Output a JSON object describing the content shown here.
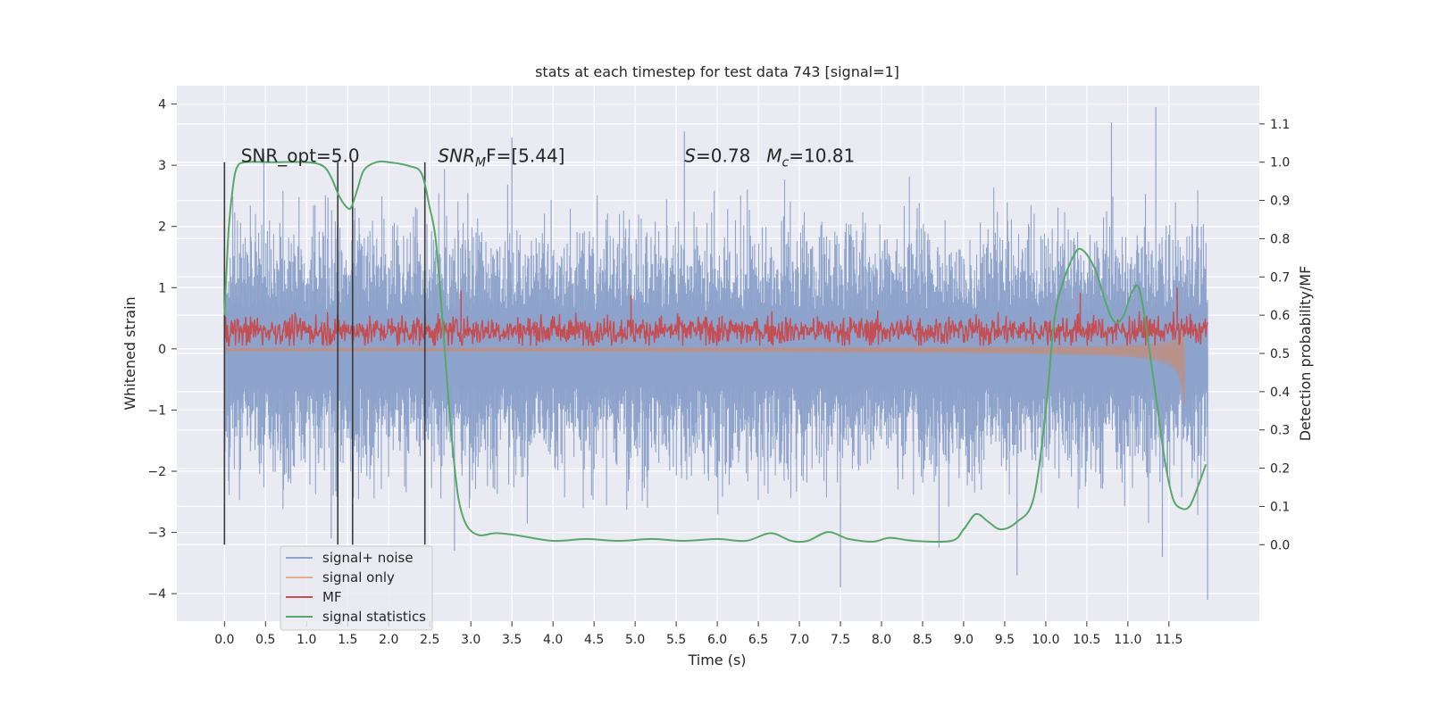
{
  "chart_data": {
    "type": "line",
    "title": "stats at each timestep for test data 743 [signal=1]",
    "xlabel": "Time (s)",
    "ylabel_left": "Whitened strain",
    "ylabel_right": "Detection probability/MF",
    "x_range": [
      -0.58,
      12.6
    ],
    "y_left_range": [
      -4.45,
      4.3
    ],
    "y_right_range": [
      -0.2,
      1.2
    ],
    "x_ticks": [
      0.0,
      0.5,
      1.0,
      1.5,
      2.0,
      2.5,
      3.0,
      3.5,
      4.0,
      4.5,
      5.0,
      5.5,
      6.0,
      6.5,
      7.0,
      7.5,
      8.0,
      8.5,
      9.0,
      9.5,
      10.0,
      10.5,
      11.0,
      11.5
    ],
    "x_tick_labels": [
      "0.0",
      "0.5",
      "1.0",
      "1.5",
      "2.0",
      "2.5",
      "3.0",
      "3.5",
      "4.0",
      "4.5",
      "5.0",
      "5.5",
      "6.0",
      "6.5",
      "7.0",
      "7.5",
      "8.0",
      "8.5",
      "9.0",
      "9.5",
      "10.0",
      "10.5",
      "11.0",
      "11.5"
    ],
    "y_left_ticks": [
      4,
      3,
      2,
      1,
      0,
      -1,
      -2,
      -3,
      -4
    ],
    "y_left_tick_labels": [
      "4",
      "3",
      "2",
      "1",
      "0",
      "−1",
      "−2",
      "−3",
      "−4"
    ],
    "y_right_ticks": [
      1.1,
      1.0,
      0.9,
      0.8,
      0.7,
      0.6,
      0.5,
      0.4,
      0.3,
      0.2,
      0.1,
      0.0
    ],
    "y_right_tick_labels": [
      "1.1",
      "1.0",
      "0.9",
      "0.8",
      "0.7",
      "0.6",
      "0.5",
      "0.4",
      "0.3",
      "0.2",
      "0.1",
      "0.0"
    ],
    "grid": true,
    "legend_placement": "lower-left",
    "colors": {
      "signal_noise": "#8ea3cb",
      "signal_only": "#dd8452",
      "mf": "#c44e52",
      "statistics": "#55a868",
      "vlines": "#3a3a3a",
      "background": "#eaeaf2",
      "grid": "#ffffff"
    },
    "series": [
      {
        "key": "signal_noise",
        "name": "signal+ noise",
        "axis": "left",
        "description_envelope": true,
        "x_start": 0.0,
        "x_end": 11.97,
        "typical_upper": 1.8,
        "typical_lower": -1.8,
        "peak_upper": 3.95,
        "peak_lower": -4.1
      },
      {
        "key": "signal_only",
        "name": "signal only",
        "axis": "left",
        "x_start": 0.0,
        "x_end": 11.69,
        "final_min": -0.85,
        "final_max": 0.35
      },
      {
        "key": "mf",
        "name": "MF",
        "axis": "left",
        "x_start": 0.0,
        "x_end": 11.97,
        "typical_upper": 0.55,
        "typical_lower": 0.05,
        "spikes": [
          {
            "x": 2.88,
            "y": 0.95
          },
          {
            "x": 4.95,
            "y": 0.88
          },
          {
            "x": 10.42,
            "y": 0.92
          },
          {
            "x": 11.6,
            "y": 1.0
          }
        ]
      },
      {
        "key": "statistics",
        "name": "signal statistics",
        "axis": "right",
        "points": [
          [
            0.0,
            0.6
          ],
          [
            0.05,
            0.82
          ],
          [
            0.1,
            0.93
          ],
          [
            0.15,
            0.985
          ],
          [
            0.25,
            1.0
          ],
          [
            0.6,
            1.0
          ],
          [
            1.0,
            1.0
          ],
          [
            1.2,
            0.99
          ],
          [
            1.3,
            0.96
          ],
          [
            1.4,
            0.91
          ],
          [
            1.5,
            0.88
          ],
          [
            1.55,
            0.885
          ],
          [
            1.62,
            0.93
          ],
          [
            1.7,
            0.98
          ],
          [
            1.85,
            1.0
          ],
          [
            2.0,
            1.0
          ],
          [
            2.25,
            0.99
          ],
          [
            2.4,
            0.97
          ],
          [
            2.5,
            0.88
          ],
          [
            2.57,
            0.8
          ],
          [
            2.65,
            0.6
          ],
          [
            2.72,
            0.4
          ],
          [
            2.78,
            0.25
          ],
          [
            2.85,
            0.12
          ],
          [
            2.95,
            0.05
          ],
          [
            3.1,
            0.025
          ],
          [
            3.3,
            0.03
          ],
          [
            3.55,
            0.025
          ],
          [
            4.0,
            0.01
          ],
          [
            4.4,
            0.015
          ],
          [
            4.8,
            0.01
          ],
          [
            5.2,
            0.015
          ],
          [
            5.6,
            0.01
          ],
          [
            6.0,
            0.015
          ],
          [
            6.35,
            0.01
          ],
          [
            6.65,
            0.03
          ],
          [
            6.9,
            0.01
          ],
          [
            7.1,
            0.01
          ],
          [
            7.35,
            0.033
          ],
          [
            7.6,
            0.015
          ],
          [
            7.9,
            0.008
          ],
          [
            8.1,
            0.018
          ],
          [
            8.4,
            0.01
          ],
          [
            8.85,
            0.01
          ],
          [
            9.0,
            0.04
          ],
          [
            9.15,
            0.08
          ],
          [
            9.3,
            0.06
          ],
          [
            9.45,
            0.04
          ],
          [
            9.65,
            0.06
          ],
          [
            9.85,
            0.12
          ],
          [
            10.0,
            0.35
          ],
          [
            10.1,
            0.58
          ],
          [
            10.2,
            0.68
          ],
          [
            10.35,
            0.76
          ],
          [
            10.45,
            0.77
          ],
          [
            10.6,
            0.72
          ],
          [
            10.75,
            0.62
          ],
          [
            10.85,
            0.58
          ],
          [
            10.95,
            0.6
          ],
          [
            11.05,
            0.66
          ],
          [
            11.15,
            0.66
          ],
          [
            11.3,
            0.45
          ],
          [
            11.45,
            0.22
          ],
          [
            11.55,
            0.12
          ],
          [
            11.65,
            0.095
          ],
          [
            11.75,
            0.1
          ],
          [
            11.85,
            0.15
          ],
          [
            11.95,
            0.21
          ]
        ]
      }
    ],
    "vertical_lines": {
      "x": [
        0.0,
        1.38,
        1.56,
        2.44
      ],
      "y_range": [
        -3.2,
        3.05
      ]
    },
    "annotations": [
      {
        "key": "snr_opt",
        "text": "SNR_opt=5.0",
        "x": 0.2,
        "y": 3.05
      },
      {
        "key": "snr_mf",
        "text": "SNR_MF=[5.44]",
        "rich": {
          "base": "SNR",
          "sub": "M",
          "rest": "F=[5.44]"
        },
        "x": 2.6,
        "y": 3.05
      },
      {
        "key": "s_value",
        "text": "S=0.78",
        "rich": {
          "base": "S",
          "rest": "=0.78"
        },
        "x": 5.6,
        "y": 3.05
      },
      {
        "key": "mc_value",
        "text": "M_c=10.81",
        "rich": {
          "base": "M",
          "sub": "c",
          "rest": "=10.81"
        },
        "x": 6.6,
        "y": 3.05
      }
    ]
  }
}
